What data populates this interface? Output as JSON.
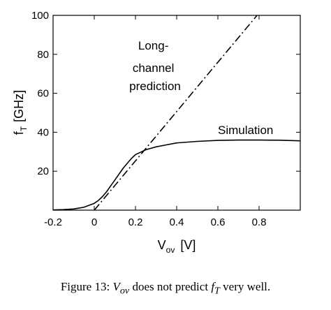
{
  "chart_data": {
    "type": "line",
    "xlabel": {
      "main": "V",
      "sub": "ov",
      "unit": "[V]"
    },
    "ylabel": {
      "main": "f",
      "sub": "T",
      "unit": "[GHz]"
    },
    "xlim": [
      -0.2,
      1.0
    ],
    "ylim": [
      0,
      100
    ],
    "x_ticks": [
      -0.2,
      0,
      0.2,
      0.4,
      0.6,
      0.8
    ],
    "x_tick_labels": [
      "-0.2",
      "0",
      "0.2",
      "0.4",
      "0.6",
      "0.8"
    ],
    "y_ticks": [
      20,
      40,
      60,
      80,
      100
    ],
    "y_tick_labels": [
      "20",
      "40",
      "60",
      "80",
      "100"
    ],
    "grid": false,
    "series": [
      {
        "name": "Simulation",
        "style": "solid",
        "x": [
          -0.2,
          -0.15,
          -0.1,
          -0.05,
          0,
          0.02,
          0.04,
          0.06,
          0.08,
          0.1,
          0.12,
          0.14,
          0.16,
          0.18,
          0.2,
          0.22,
          0.25,
          0.3,
          0.35,
          0.4,
          0.5,
          0.6,
          0.7,
          0.8,
          0.9,
          1.0
        ],
        "y": [
          0.1,
          0.3,
          0.6,
          1.5,
          3.5,
          5,
          7,
          9.5,
          12.5,
          15.5,
          18.5,
          21.5,
          24,
          26.5,
          28.5,
          29.5,
          31,
          32.5,
          33.5,
          34.5,
          35.3,
          35.8,
          36,
          36,
          35.9,
          35.6
        ]
      },
      {
        "name": "Long-channel prediction",
        "style": "dashdot",
        "x": [
          0.0,
          0.79
        ],
        "y": [
          0,
          100
        ]
      }
    ],
    "annotations": [
      {
        "lines": [
          "Long-",
          "channel",
          "prediction"
        ],
        "target": "Long-channel prediction"
      },
      {
        "lines": [
          "Simulation"
        ],
        "target": "Simulation"
      }
    ]
  },
  "caption": {
    "prefix": "Figure 13: ",
    "v_main": "V",
    "v_sub": "ov",
    "middle": " does not predict ",
    "f_main": "f",
    "f_sub": "T",
    "suffix": " very well."
  }
}
